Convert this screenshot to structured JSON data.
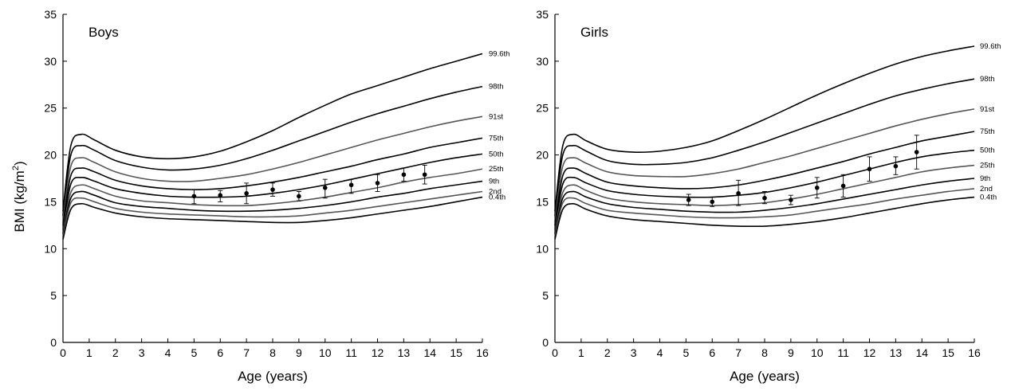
{
  "ylabel": "BMI (kg/m²)",
  "chart_data": [
    {
      "type": "line",
      "title": "Boys",
      "xlabel": "Age (years)",
      "ylabel": "BMI (kg/m²)",
      "xlim": [
        0,
        16
      ],
      "ylim": [
        0,
        35
      ],
      "xticks": [
        0,
        1,
        2,
        3,
        4,
        5,
        6,
        7,
        8,
        9,
        10,
        11,
        12,
        13,
        14,
        15,
        16
      ],
      "yticks": [
        0,
        5,
        10,
        15,
        20,
        25,
        30,
        35
      ],
      "grid": false,
      "series": [
        {
          "name": "99.6th",
          "color": "#000000",
          "x": [
            0,
            0.3,
            0.7,
            1.2,
            2,
            3,
            4,
            5,
            6,
            7,
            8,
            9,
            10,
            11,
            12,
            13,
            14,
            15,
            16
          ],
          "y": [
            14,
            21.0,
            22.2,
            21.6,
            20.5,
            19.8,
            19.6,
            19.8,
            20.4,
            21.4,
            22.6,
            24.0,
            25.3,
            26.5,
            27.4,
            28.3,
            29.2,
            30.0,
            30.8
          ]
        },
        {
          "name": "98th",
          "color": "#000000",
          "x": [
            0,
            0.3,
            0.7,
            1.2,
            2,
            3,
            4,
            5,
            6,
            7,
            8,
            9,
            10,
            11,
            12,
            13,
            14,
            15,
            16
          ],
          "y": [
            13.5,
            20.0,
            21.0,
            20.5,
            19.4,
            18.7,
            18.4,
            18.5,
            18.9,
            19.6,
            20.5,
            21.5,
            22.5,
            23.5,
            24.4,
            25.2,
            26.0,
            26.7,
            27.3
          ]
        },
        {
          "name": "91st",
          "color": "#555555",
          "x": [
            0,
            0.3,
            0.7,
            1.2,
            2,
            3,
            4,
            5,
            6,
            7,
            8,
            9,
            10,
            11,
            12,
            13,
            14,
            15,
            16
          ],
          "y": [
            13,
            18.8,
            19.7,
            19.2,
            18.2,
            17.5,
            17.2,
            17.2,
            17.5,
            17.9,
            18.5,
            19.2,
            20.0,
            20.8,
            21.6,
            22.3,
            23.0,
            23.6,
            24.1
          ]
        },
        {
          "name": "75th",
          "color": "#000000",
          "x": [
            0,
            0.3,
            0.7,
            1.2,
            2,
            3,
            4,
            5,
            6,
            7,
            8,
            9,
            10,
            11,
            12,
            13,
            14,
            15,
            16
          ],
          "y": [
            12.5,
            17.8,
            18.6,
            18.2,
            17.3,
            16.7,
            16.4,
            16.3,
            16.4,
            16.7,
            17.1,
            17.6,
            18.2,
            18.8,
            19.5,
            20.1,
            20.8,
            21.3,
            21.8
          ]
        },
        {
          "name": "50th",
          "color": "#000000",
          "x": [
            0,
            0.3,
            0.7,
            1.2,
            2,
            3,
            4,
            5,
            6,
            7,
            8,
            9,
            10,
            11,
            12,
            13,
            14,
            15,
            16
          ],
          "y": [
            12,
            16.9,
            17.6,
            17.2,
            16.4,
            15.9,
            15.6,
            15.5,
            15.5,
            15.6,
            15.9,
            16.3,
            16.8,
            17.4,
            18.0,
            18.6,
            19.2,
            19.7,
            20.1
          ]
        },
        {
          "name": "25th",
          "color": "#555555",
          "x": [
            0,
            0.3,
            0.7,
            1.2,
            2,
            3,
            4,
            5,
            6,
            7,
            8,
            9,
            10,
            11,
            12,
            13,
            14,
            15,
            16
          ],
          "y": [
            11.8,
            16.0,
            16.8,
            16.4,
            15.6,
            15.1,
            14.9,
            14.7,
            14.6,
            14.6,
            14.8,
            15.1,
            15.5,
            16.0,
            16.5,
            17.1,
            17.6,
            18.0,
            18.5
          ]
        },
        {
          "name": "9th",
          "color": "#000000",
          "x": [
            0,
            0.3,
            0.7,
            1.2,
            2,
            3,
            4,
            5,
            6,
            7,
            8,
            9,
            10,
            11,
            12,
            13,
            14,
            15,
            16
          ],
          "y": [
            11.6,
            15.4,
            16.1,
            15.7,
            14.9,
            14.5,
            14.3,
            14.1,
            14.0,
            14.0,
            14.1,
            14.3,
            14.6,
            15.0,
            15.5,
            15.9,
            16.4,
            16.8,
            17.2
          ]
        },
        {
          "name": "2nd",
          "color": "#555555",
          "x": [
            0,
            0.3,
            0.7,
            1.2,
            2,
            3,
            4,
            5,
            6,
            7,
            8,
            9,
            10,
            11,
            12,
            13,
            14,
            15,
            16
          ],
          "y": [
            11.3,
            14.9,
            15.4,
            15.0,
            14.3,
            13.9,
            13.7,
            13.6,
            13.5,
            13.4,
            13.4,
            13.5,
            13.8,
            14.1,
            14.5,
            14.9,
            15.3,
            15.7,
            16.1
          ]
        },
        {
          "name": "0.4th",
          "color": "#000000",
          "x": [
            0,
            0.3,
            0.7,
            1.2,
            2,
            3,
            4,
            5,
            6,
            7,
            8,
            9,
            10,
            11,
            12,
            13,
            14,
            15,
            16
          ],
          "y": [
            11,
            14.2,
            14.8,
            14.4,
            13.8,
            13.4,
            13.2,
            13.1,
            13.0,
            12.9,
            12.8,
            12.8,
            13.0,
            13.3,
            13.7,
            14.1,
            14.5,
            15.0,
            15.5
          ]
        }
      ],
      "points": {
        "x": [
          5,
          6,
          7,
          8,
          9,
          10,
          11,
          12,
          13,
          13.8
        ],
        "y": [
          15.6,
          15.7,
          15.9,
          16.3,
          15.6,
          16.5,
          16.8,
          17.0,
          17.9,
          17.9
        ],
        "y_low": [
          14.8,
          15.0,
          14.8,
          15.6,
          15.1,
          15.4,
          15.9,
          16.1,
          17.2,
          16.9
        ],
        "y_high": [
          16.3,
          16.2,
          17.0,
          17.0,
          16.1,
          17.4,
          17.4,
          17.9,
          18.6,
          18.9
        ]
      }
    },
    {
      "type": "line",
      "title": "Girls",
      "xlabel": "Age (years)",
      "ylabel": "BMI (kg/m²)",
      "xlim": [
        0,
        16
      ],
      "ylim": [
        0,
        35
      ],
      "xticks": [
        0,
        1,
        2,
        3,
        4,
        5,
        6,
        7,
        8,
        9,
        10,
        11,
        12,
        13,
        14,
        15,
        16
      ],
      "yticks": [
        0,
        5,
        10,
        15,
        20,
        25,
        30,
        35
      ],
      "grid": false,
      "series": [
        {
          "name": "99.6th",
          "color": "#000000",
          "x": [
            0,
            0.3,
            0.7,
            1.2,
            2,
            3,
            4,
            5,
            6,
            7,
            8,
            9,
            10,
            11,
            12,
            13,
            14,
            15,
            16
          ],
          "y": [
            14,
            21.0,
            22.2,
            21.5,
            20.6,
            20.3,
            20.4,
            20.8,
            21.5,
            22.6,
            23.8,
            25.1,
            26.4,
            27.6,
            28.7,
            29.7,
            30.5,
            31.1,
            31.6
          ]
        },
        {
          "name": "98th",
          "color": "#000000",
          "x": [
            0,
            0.3,
            0.7,
            1.2,
            2,
            3,
            4,
            5,
            6,
            7,
            8,
            9,
            10,
            11,
            12,
            13,
            14,
            15,
            16
          ],
          "y": [
            13.5,
            20.0,
            21.0,
            20.4,
            19.4,
            19.0,
            19.0,
            19.2,
            19.7,
            20.5,
            21.4,
            22.4,
            23.4,
            24.4,
            25.4,
            26.3,
            27.0,
            27.6,
            28.1
          ]
        },
        {
          "name": "91st",
          "color": "#555555",
          "x": [
            0,
            0.3,
            0.7,
            1.2,
            2,
            3,
            4,
            5,
            6,
            7,
            8,
            9,
            10,
            11,
            12,
            13,
            14,
            15,
            16
          ],
          "y": [
            13,
            18.8,
            19.7,
            19.1,
            18.2,
            17.8,
            17.7,
            17.7,
            18.0,
            18.5,
            19.2,
            19.9,
            20.7,
            21.5,
            22.3,
            23.1,
            23.8,
            24.4,
            24.9
          ]
        },
        {
          "name": "75th",
          "color": "#000000",
          "x": [
            0,
            0.3,
            0.7,
            1.2,
            2,
            3,
            4,
            5,
            6,
            7,
            8,
            9,
            10,
            11,
            12,
            13,
            14,
            15,
            16
          ],
          "y": [
            12.5,
            17.8,
            18.6,
            18.0,
            17.1,
            16.7,
            16.5,
            16.4,
            16.5,
            16.8,
            17.3,
            17.9,
            18.6,
            19.3,
            20.1,
            20.8,
            21.5,
            22.0,
            22.5
          ]
        },
        {
          "name": "50th",
          "color": "#000000",
          "x": [
            0,
            0.3,
            0.7,
            1.2,
            2,
            3,
            4,
            5,
            6,
            7,
            8,
            9,
            10,
            11,
            12,
            13,
            14,
            15,
            16
          ],
          "y": [
            12,
            16.9,
            17.6,
            17.0,
            16.2,
            15.8,
            15.6,
            15.5,
            15.5,
            15.7,
            16.0,
            16.5,
            17.1,
            17.8,
            18.5,
            19.2,
            19.8,
            20.2,
            20.5
          ]
        },
        {
          "name": "25th",
          "color": "#555555",
          "x": [
            0,
            0.3,
            0.7,
            1.2,
            2,
            3,
            4,
            5,
            6,
            7,
            8,
            9,
            10,
            11,
            12,
            13,
            14,
            15,
            16
          ],
          "y": [
            11.8,
            16.0,
            16.8,
            16.2,
            15.4,
            15.0,
            14.8,
            14.7,
            14.6,
            14.7,
            14.9,
            15.3,
            15.8,
            16.4,
            17.0,
            17.6,
            18.2,
            18.6,
            18.9
          ]
        },
        {
          "name": "9th",
          "color": "#000000",
          "x": [
            0,
            0.3,
            0.7,
            1.2,
            2,
            3,
            4,
            5,
            6,
            7,
            8,
            9,
            10,
            11,
            12,
            13,
            14,
            15,
            16
          ],
          "y": [
            11.6,
            15.4,
            16.1,
            15.5,
            14.8,
            14.4,
            14.2,
            14.0,
            13.9,
            13.9,
            14.1,
            14.4,
            14.8,
            15.3,
            15.8,
            16.3,
            16.8,
            17.2,
            17.5
          ]
        },
        {
          "name": "2nd",
          "color": "#555555",
          "x": [
            0,
            0.3,
            0.7,
            1.2,
            2,
            3,
            4,
            5,
            6,
            7,
            8,
            9,
            10,
            11,
            12,
            13,
            14,
            15,
            16
          ],
          "y": [
            11.3,
            14.9,
            15.4,
            14.8,
            14.1,
            13.8,
            13.6,
            13.4,
            13.3,
            13.3,
            13.4,
            13.6,
            14.0,
            14.4,
            14.8,
            15.3,
            15.7,
            16.1,
            16.4
          ]
        },
        {
          "name": "0.4th",
          "color": "#000000",
          "x": [
            0,
            0.3,
            0.7,
            1.2,
            2,
            3,
            4,
            5,
            6,
            7,
            8,
            9,
            10,
            11,
            12,
            13,
            14,
            15,
            16
          ],
          "y": [
            11,
            14.2,
            14.8,
            14.2,
            13.5,
            13.1,
            12.9,
            12.7,
            12.5,
            12.4,
            12.4,
            12.6,
            12.9,
            13.3,
            13.8,
            14.3,
            14.8,
            15.2,
            15.5
          ]
        }
      ],
      "points": {
        "x": [
          5.1,
          6,
          7,
          8,
          9,
          10,
          11,
          12,
          13,
          13.8
        ],
        "y": [
          15.2,
          15.0,
          15.9,
          15.4,
          15.2,
          16.5,
          16.7,
          18.5,
          18.8,
          20.3
        ],
        "y_low": [
          14.6,
          14.5,
          14.6,
          14.8,
          14.7,
          15.4,
          15.5,
          17.2,
          17.9,
          18.5
        ],
        "y_high": [
          15.8,
          15.5,
          17.3,
          16.1,
          15.7,
          17.6,
          17.9,
          19.8,
          19.8,
          22.1
        ]
      }
    }
  ]
}
